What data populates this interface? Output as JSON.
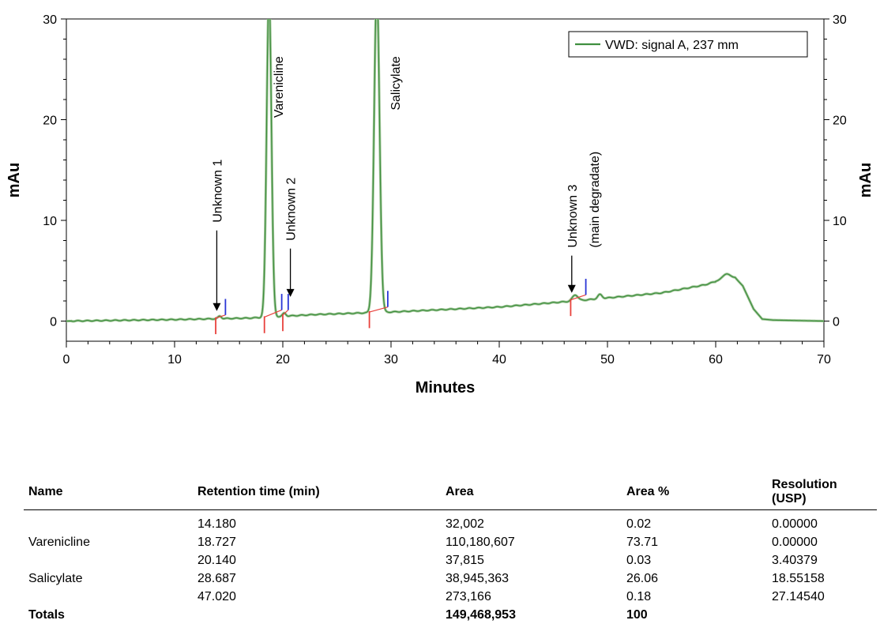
{
  "chart_data": {
    "type": "line",
    "xlabel": "Minutes",
    "ylabel": "mAu",
    "ylabel_right": "mAu",
    "xlim": [
      0,
      70
    ],
    "ylim": [
      -2,
      30
    ],
    "x_ticks": [
      0,
      10,
      20,
      30,
      40,
      50,
      60,
      70
    ],
    "y_ticks": [
      0,
      10,
      20,
      30
    ],
    "grid": false,
    "legend": {
      "position": "top-right",
      "entries": [
        "VWD: signal A, 237 mm"
      ]
    },
    "series": [
      {
        "name": "VWD: signal A, 237 mm",
        "color": "#3f8f3f",
        "baseline": [
          [
            0,
            0.0
          ],
          [
            10,
            0.15
          ],
          [
            17,
            0.3
          ],
          [
            23,
            0.65
          ],
          [
            30,
            0.9
          ],
          [
            40,
            1.4
          ],
          [
            47,
            2.0
          ],
          [
            55,
            2.8
          ],
          [
            59,
            3.6
          ],
          [
            60.5,
            4.1
          ]
        ],
        "peaks": [
          {
            "rt": 14.18,
            "height": 0.25,
            "width": 0.15
          },
          {
            "rt": 18.727,
            "height": 32,
            "width": 0.22
          },
          {
            "rt": 20.14,
            "height": 0.3,
            "width": 0.15
          },
          {
            "rt": 28.687,
            "height": 32,
            "width": 0.25
          },
          {
            "rt": 47.02,
            "height": 0.6,
            "width": 0.25
          },
          {
            "rt": 49.3,
            "height": 0.4,
            "width": 0.2
          },
          {
            "rt": 61.0,
            "height": 0.5,
            "width": 0.35
          }
        ],
        "tail": [
          [
            61.8,
            4.3
          ],
          [
            62.5,
            3.5
          ],
          [
            63.5,
            1.2
          ],
          [
            64.3,
            0.2
          ],
          [
            65.3,
            0.1
          ],
          [
            70,
            0.0
          ]
        ]
      }
    ],
    "annotations": [
      {
        "text": "Unknown 1",
        "x": 13.9,
        "arrow_from": 9,
        "arrow_to": 1.0
      },
      {
        "text": "Varenicline",
        "x": 20.0,
        "arrow_from": null,
        "arrow_to": null
      },
      {
        "text": "Unknown 2",
        "x": 20.7,
        "arrow_from": 7.2,
        "arrow_to": 2.4
      },
      {
        "text": "Salicylate",
        "x": 30.8,
        "arrow_from": null,
        "arrow_to": null
      },
      {
        "text": "Unknown 3",
        "x": 46.7,
        "arrow_from": 6.5,
        "arrow_to": 2.8
      },
      {
        "text": "(main degradate)",
        "x": 49.2,
        "arrow_from": null,
        "arrow_to": null
      }
    ],
    "integration_marks": {
      "start_color": "#e8413c",
      "end_color": "#2a36d6",
      "starts": [
        [
          13.8,
          0.3
        ],
        [
          18.3,
          0.4
        ],
        [
          20.0,
          0.6
        ],
        [
          28.0,
          0.9
        ],
        [
          46.6,
          2.1
        ]
      ],
      "ends": [
        [
          14.7,
          0.6
        ],
        [
          19.9,
          1.1
        ],
        [
          20.5,
          1.1
        ],
        [
          29.7,
          1.4
        ],
        [
          48.0,
          2.6
        ]
      ]
    }
  },
  "table": {
    "headers": [
      "Name",
      "Retention time (min)",
      "Area",
      "Area %",
      "Resolution (USP)"
    ],
    "rows": [
      [
        "",
        "14.180",
        "32,002",
        "0.02",
        "0.00000"
      ],
      [
        "Varenicline",
        "18.727",
        "110,180,607",
        "73.71",
        "0.00000"
      ],
      [
        "",
        "20.140",
        "37,815",
        "0.03",
        "3.40379"
      ],
      [
        "Salicylate",
        "28.687",
        "38,945,363",
        "26.06",
        "18.55158"
      ],
      [
        "",
        "47.020",
        "273,166",
        "0.18",
        "27.14540"
      ]
    ],
    "totals": [
      "Totals",
      "",
      "149,468,953",
      "100",
      ""
    ]
  }
}
